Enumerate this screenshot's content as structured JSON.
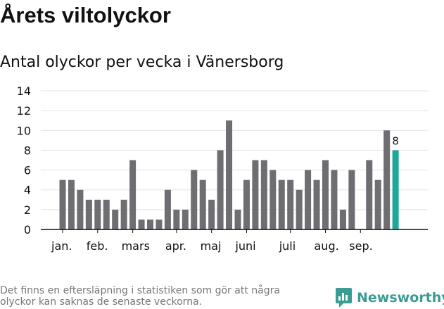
{
  "title": "Årets viltolyckor",
  "subtitle": "Antal olyckor per vecka i Vänersborg",
  "footnote": "Det finns en eftersläpning i statistiken som gör att några olyckor kan saknas de senaste veckorna.",
  "brand": {
    "name": "Newsworthy",
    "color": "#3a9c92",
    "icon": "newsworthy-logo-icon"
  },
  "colors": {
    "bar": "#6d6d72",
    "highlight": "#1ea89b",
    "grid": "#e3e3e3",
    "axis": "#111111"
  },
  "chart_data": {
    "type": "bar",
    "title": "Antal olyckor per vecka i Vänersborg",
    "xlabel": "",
    "ylabel": "",
    "ylim": [
      0,
      14
    ],
    "yticks": [
      0,
      2,
      4,
      6,
      8,
      10,
      12,
      14
    ],
    "grid": true,
    "weeks": [
      1,
      2,
      3,
      4,
      5,
      6,
      7,
      8,
      9,
      10,
      11,
      12,
      13,
      14,
      15,
      16,
      17,
      18,
      19,
      20,
      21,
      22,
      23,
      24,
      25,
      26,
      27,
      28,
      29,
      30,
      31,
      32,
      33,
      34,
      35,
      36,
      37,
      38,
      39
    ],
    "values": [
      5,
      5,
      4,
      3,
      3,
      3,
      2,
      3,
      7,
      1,
      1,
      1,
      4,
      2,
      2,
      6,
      5,
      3,
      8,
      11,
      2,
      5,
      7,
      7,
      6,
      5,
      5,
      4,
      6,
      5,
      7,
      6,
      2,
      6,
      0,
      7,
      5,
      10,
      8
    ],
    "highlight_index": 38,
    "highlight_label": "8",
    "month_labels": [
      {
        "label": "jan.",
        "week": 1
      },
      {
        "label": "feb.",
        "week": 5
      },
      {
        "label": "mars",
        "week": 9
      },
      {
        "label": "apr.",
        "week": 14
      },
      {
        "label": "maj",
        "week": 18
      },
      {
        "label": "juni",
        "week": 22
      },
      {
        "label": "juli",
        "week": 27
      },
      {
        "label": "aug.",
        "week": 31
      },
      {
        "label": "sep.",
        "week": 35
      }
    ]
  }
}
